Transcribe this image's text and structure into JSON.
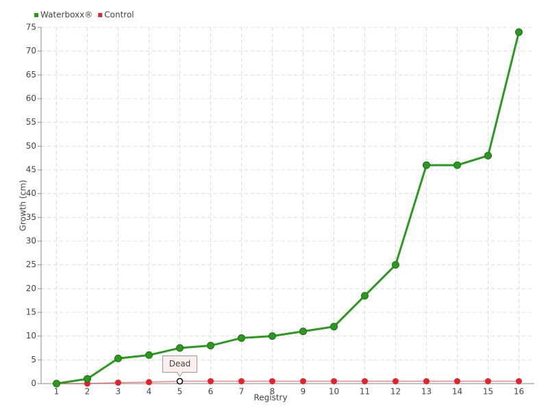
{
  "chart_data": {
    "type": "line",
    "x_label": "Registry",
    "y_label": "Growth (cm)",
    "categories": [
      "1",
      "2",
      "3",
      "4",
      "5",
      "6",
      "7",
      "8",
      "9",
      "10",
      "11",
      "12",
      "13",
      "14",
      "15",
      "16"
    ],
    "series": [
      {
        "name": "Waterboxx®",
        "color": "#2a9a1f",
        "values": [
          0,
          1,
          5.3,
          6,
          7.5,
          8,
          9.6,
          10,
          11,
          12,
          18.5,
          25,
          46,
          46,
          48,
          74
        ]
      },
      {
        "name": "Control",
        "color": "#e8202a",
        "values": [
          0,
          0,
          0.2,
          0.3,
          0.5,
          0.5,
          0.5,
          0.5,
          0.5,
          0.5,
          0.5,
          0.5,
          0.5,
          0.5,
          0.5,
          0.5
        ]
      }
    ],
    "annotations": [
      {
        "text": "Dead",
        "category": "5",
        "series": "Control"
      }
    ],
    "ylim": [
      0,
      75
    ],
    "yticks": [
      0,
      5,
      10,
      15,
      20,
      25,
      30,
      35,
      40,
      45,
      50,
      55,
      60,
      65,
      70,
      75
    ],
    "grid": true
  }
}
